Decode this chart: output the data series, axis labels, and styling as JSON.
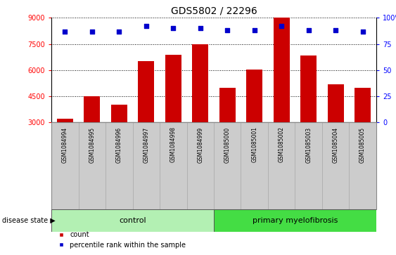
{
  "title": "GDS5802 / 22296",
  "samples": [
    "GSM1084994",
    "GSM1084995",
    "GSM1084996",
    "GSM1084997",
    "GSM1084998",
    "GSM1084999",
    "GSM1085000",
    "GSM1085001",
    "GSM1085002",
    "GSM1085003",
    "GSM1085004",
    "GSM1085005"
  ],
  "counts": [
    3200,
    4500,
    4000,
    6500,
    6900,
    7500,
    5000,
    6050,
    9000,
    6850,
    5200,
    5000
  ],
  "percentiles": [
    87,
    87,
    87,
    92,
    90,
    90,
    88,
    88,
    92,
    88,
    88,
    87
  ],
  "groups": [
    "control",
    "control",
    "control",
    "control",
    "control",
    "control",
    "primary myelofibrosis",
    "primary myelofibrosis",
    "primary myelofibrosis",
    "primary myelofibrosis",
    "primary myelofibrosis",
    "primary myelofibrosis"
  ],
  "bar_color": "#CC0000",
  "dot_color": "#0000CC",
  "ylim_left": [
    3000,
    9000
  ],
  "ylim_right": [
    0,
    100
  ],
  "yticks_left": [
    3000,
    4500,
    6000,
    7500,
    9000
  ],
  "yticks_right": [
    0,
    25,
    50,
    75,
    100
  ],
  "ctrl_color": "#b3f0b3",
  "pmf_color": "#44dd44",
  "tick_bg_color": "#cccccc",
  "legend_count_label": "count",
  "legend_pct_label": "percentile rank within the sample",
  "ctrl_indices": [
    0,
    5
  ],
  "pmf_indices": [
    6,
    11
  ]
}
